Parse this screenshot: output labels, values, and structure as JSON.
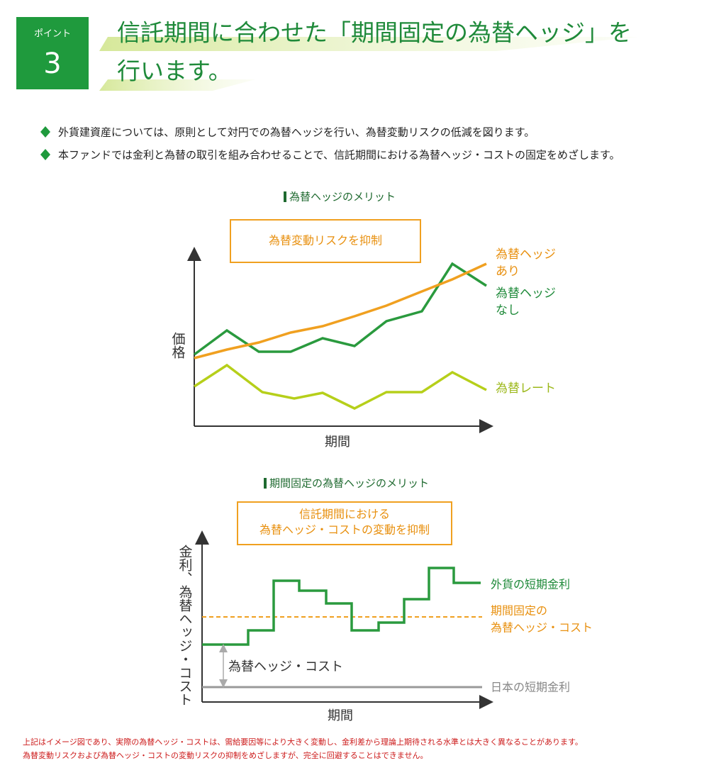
{
  "badge": {
    "label": "ポイント",
    "number": "3"
  },
  "title_lines": [
    "信託期間に合わせた「期間固定の為替ヘッジ」を",
    "行います。"
  ],
  "bullets": [
    "外貨建資産については、原則として対円での為替ヘッジを行い、為替変動リスクの低減を図ります。",
    "本ファンドでは金利と為替の取引を組み合わせることで、信託期間における為替ヘッジ・コストの固定をめざします。"
  ],
  "chart1": {
    "heading": "為替ヘッジのメリット",
    "callout": "為替変動リスクを抑制",
    "y_label": "価格",
    "x_label": "期間",
    "hedged_label": [
      "為替ヘッジ",
      "あり"
    ],
    "unhedged_label": [
      "為替ヘッジ",
      "なし"
    ],
    "rate_label": "為替レート"
  },
  "chart2": {
    "heading": "期間固定の為替ヘッジのメリット",
    "callout": [
      "信託期間における",
      "為替ヘッジ・コストの変動を抑制"
    ],
    "y_label": "金利、為替ヘッジ・コスト",
    "x_label": "期間",
    "foreign_label": "外貨の短期金利",
    "fixed_label": [
      "期間固定の",
      "為替ヘッジ・コスト"
    ],
    "cost_label": "為替ヘッジ・コスト",
    "japan_label": "日本の短期金利"
  },
  "notes": [
    "上記はイメージ図であり、実際の為替ヘッジ・コストは、需給要因等により大きく変動し、金利差から理論上期待される水準とは大きく異なることがあります。",
    "為替変動リスクおよび為替ヘッジ・コストの変動リスクの抑制をめざしますが、完全に回避することはできません。"
  ]
}
